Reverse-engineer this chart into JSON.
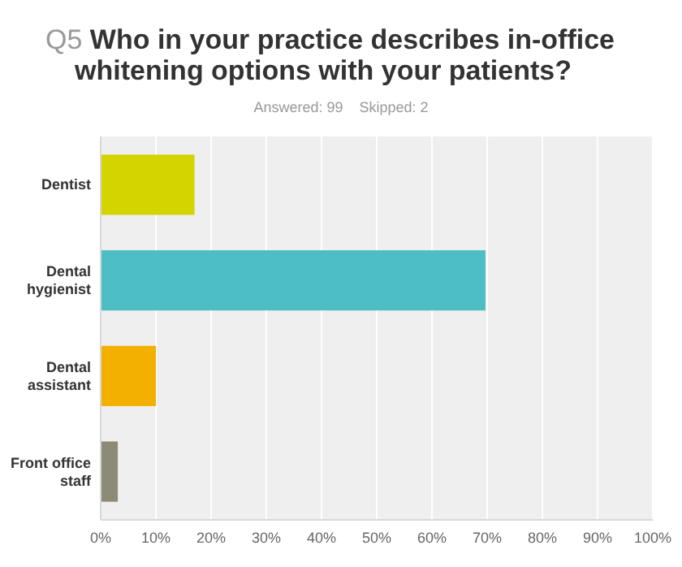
{
  "chart_data": {
    "type": "bar",
    "orientation": "horizontal",
    "title": "Q5 Who in your practice describes in-office whitening options with your patients?",
    "subtitle": "Answered: 99    Skipped: 2",
    "categories": [
      "Dentist",
      "Dental hygienist",
      "Dental assistant",
      "Front office staff"
    ],
    "values": [
      17,
      69.7,
      10,
      3.1
    ],
    "colors": [
      "#d4d400",
      "#4dbec4",
      "#f4b000",
      "#8c8b78"
    ],
    "xlim": [
      0,
      100
    ],
    "xticks": [
      {
        "value": 0,
        "label": "0%"
      },
      {
        "value": 10,
        "label": "10%"
      },
      {
        "value": 20,
        "label": "20%"
      },
      {
        "value": 30,
        "label": "30%"
      },
      {
        "value": 40,
        "label": "40%"
      },
      {
        "value": 50,
        "label": "50%"
      },
      {
        "value": 60,
        "label": "60%"
      },
      {
        "value": 70,
        "label": "70%"
      },
      {
        "value": 80,
        "label": "80%"
      },
      {
        "value": 90,
        "label": "90%"
      },
      {
        "value": 100,
        "label": "100%"
      }
    ],
    "grid": "x"
  }
}
